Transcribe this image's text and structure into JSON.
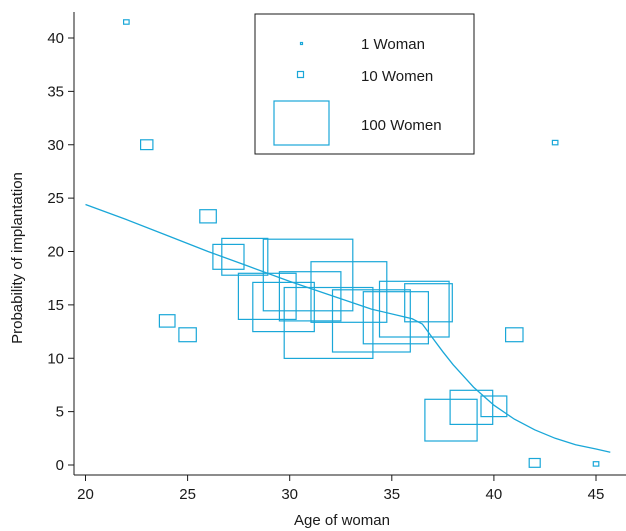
{
  "chart_data": {
    "type": "scatter",
    "xlabel": "Age of woman",
    "ylabel": "Probability of implantation",
    "xlim": [
      20,
      46
    ],
    "ylim": [
      0,
      43
    ],
    "xticks": [
      20,
      25,
      30,
      35,
      40,
      45
    ],
    "yticks": [
      0,
      5,
      10,
      15,
      20,
      25,
      30,
      35,
      40
    ],
    "grid": false,
    "marker_color": "#1aa7d8",
    "legend": {
      "placement": "top-center",
      "entries": [
        {
          "label": "1 Woman",
          "women": 1
        },
        {
          "label": "10 Women",
          "women": 10
        },
        {
          "label": "100 Women",
          "women": 100
        }
      ]
    },
    "points": [
      {
        "x": 22,
        "y": 41.5,
        "women": 1
      },
      {
        "x": 23,
        "y": 30,
        "women": 5
      },
      {
        "x": 24,
        "y": 13.5,
        "women": 8
      },
      {
        "x": 25,
        "y": 12.2,
        "women": 10
      },
      {
        "x": 26,
        "y": 23.3,
        "women": 9
      },
      {
        "x": 27,
        "y": 19.5,
        "women": 32
      },
      {
        "x": 27.8,
        "y": 19.5,
        "women": 70
      },
      {
        "x": 28.9,
        "y": 15.8,
        "women": 110
      },
      {
        "x": 29.7,
        "y": 14.8,
        "women": 125
      },
      {
        "x": 30.9,
        "y": 17.8,
        "women": 265
      },
      {
        "x": 31,
        "y": 15.8,
        "women": 125
      },
      {
        "x": 31.9,
        "y": 13.3,
        "women": 260
      },
      {
        "x": 32.9,
        "y": 16.2,
        "women": 190
      },
      {
        "x": 34,
        "y": 13.5,
        "women": 200
      },
      {
        "x": 35.2,
        "y": 13.8,
        "women": 140
      },
      {
        "x": 36.1,
        "y": 14.6,
        "women": 160
      },
      {
        "x": 36.8,
        "y": 15.2,
        "women": 75
      },
      {
        "x": 37.9,
        "y": 4.2,
        "women": 90
      },
      {
        "x": 38.9,
        "y": 5.4,
        "women": 60
      },
      {
        "x": 40,
        "y": 5.5,
        "women": 22
      },
      {
        "x": 41,
        "y": 12.2,
        "women": 10
      },
      {
        "x": 42,
        "y": 0.2,
        "women": 4
      },
      {
        "x": 43,
        "y": 30.2,
        "women": 1
      },
      {
        "x": 45,
        "y": 0.1,
        "women": 1
      }
    ],
    "fit_curve": {
      "x": [
        20,
        22,
        24,
        26,
        28,
        30,
        32,
        34,
        36,
        36.5,
        37,
        37.5,
        38,
        39,
        40,
        41,
        42,
        43,
        44,
        45,
        45.7
      ],
      "y": [
        24.4,
        23.0,
        21.5,
        20.0,
        18.6,
        17.2,
        15.9,
        14.6,
        13.7,
        13.2,
        11.9,
        10.6,
        9.4,
        7.3,
        5.6,
        4.3,
        3.3,
        2.5,
        1.9,
        1.5,
        1.2
      ]
    }
  }
}
